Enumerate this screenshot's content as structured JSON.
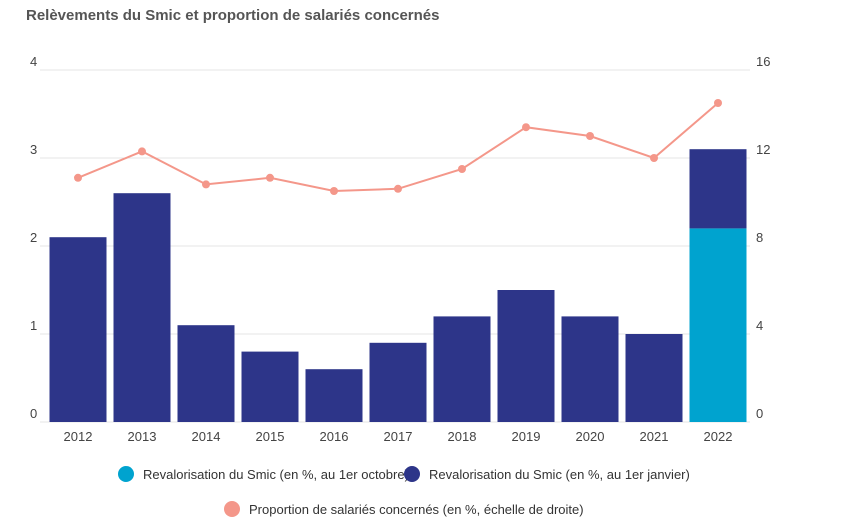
{
  "chart_data": {
    "type": "bar",
    "title": "Relèvements du Smic et proportion de salariés concernés",
    "categories": [
      "2012",
      "2013",
      "2014",
      "2015",
      "2016",
      "2017",
      "2018",
      "2019",
      "2020",
      "2021",
      "2022"
    ],
    "left_axis": {
      "range": [
        0,
        4
      ],
      "ticks": [
        "0",
        "1",
        "2",
        "3",
        "4"
      ]
    },
    "right_axis": {
      "range": [
        0,
        16
      ],
      "ticks": [
        "0",
        "4",
        "8",
        "12",
        "16"
      ]
    },
    "grid": true,
    "legend_position": "bottom",
    "series": [
      {
        "name": "Revalorisation du Smic (en %, au 1er octobre)",
        "type": "bar",
        "stacked": true,
        "axis": "left",
        "color": "#00A3CF",
        "values": [
          0,
          0,
          0,
          0,
          0,
          0,
          0,
          0,
          0,
          0,
          2.2
        ]
      },
      {
        "name": "Revalorisation du Smic (en %, au 1er janvier)",
        "type": "bar",
        "stacked": true,
        "axis": "left",
        "color": "#2D3589",
        "values": [
          2.1,
          2.6,
          1.1,
          0.8,
          0.6,
          0.9,
          1.2,
          1.5,
          1.2,
          1.0,
          0.9
        ]
      },
      {
        "name": "Proportion de salariés concernés (en %, échelle de droite)",
        "type": "line",
        "axis": "right",
        "color": "#F4978A",
        "values": [
          11.1,
          12.3,
          10.8,
          11.1,
          10.5,
          10.6,
          11.5,
          13.4,
          13.0,
          12.0,
          14.5
        ]
      }
    ]
  }
}
